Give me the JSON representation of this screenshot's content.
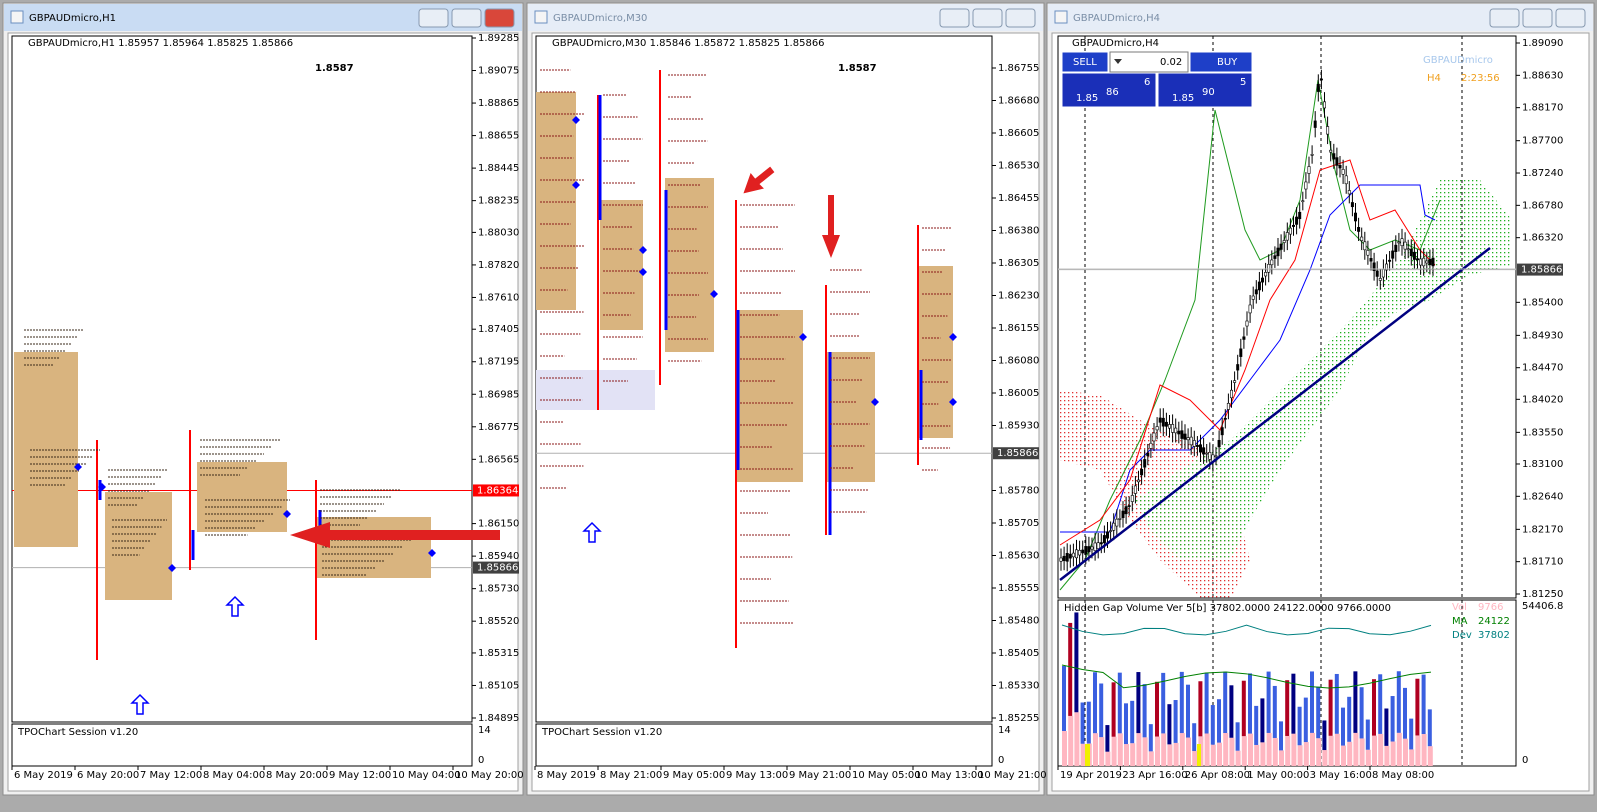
{
  "windows": [
    {
      "title": "GBPAUDmicro,H1",
      "header": "GBPAUDmicro,H1 1.85957 1.85964 1.85825 1.85866",
      "big_price": "1.8587",
      "price_axis": [
        "1.89285",
        "1.89075",
        "1.88865",
        "1.88655",
        "1.88445",
        "1.88235",
        "1.88030",
        "1.87820",
        "1.87610",
        "1.87405",
        "1.87195",
        "1.86985",
        "1.86775",
        "1.86565",
        "1.86150",
        "1.85940",
        "1.85730",
        "1.85520",
        "1.85315",
        "1.85105",
        "1.84895"
      ],
      "price_markers": [
        {
          "label": "1.86364",
          "color": "#ff0000"
        },
        {
          "label": "1.85866",
          "color": "#404040"
        }
      ],
      "indicator": {
        "name": "TPOChart Session v1.20",
        "scale_max": "14",
        "scale_min": "0"
      },
      "time_axis": [
        "6 May 2019",
        "6 May 20:00",
        "7 May 12:00",
        "8 May 04:00",
        "8 May 20:00",
        "9 May 12:00",
        "10 May 04:00",
        "10 May 20:00"
      ]
    },
    {
      "title": "GBPAUDmicro,M30",
      "header": "GBPAUDmicro,M30 1.85846 1.85872 1.85825 1.85866",
      "big_price": "1.8587",
      "price_axis": [
        "1.86755",
        "1.86680",
        "1.86605",
        "1.86530",
        "1.86455",
        "1.86380",
        "1.86305",
        "1.86230",
        "1.86155",
        "1.86080",
        "1.86005",
        "1.85930",
        "1.85780",
        "1.85705",
        "1.85630",
        "1.85555",
        "1.85480",
        "1.85405",
        "1.85330",
        "1.85255"
      ],
      "price_markers": [
        {
          "label": "1.85866",
          "color": "#404040"
        }
      ],
      "indicator": {
        "name": "TPOChart Session v1.20",
        "scale_max": "14",
        "scale_min": "0"
      },
      "time_axis": [
        "8 May 2019",
        "8 May 21:00",
        "9 May 05:00",
        "9 May 13:00",
        "9 May 21:00",
        "10 May 05:00",
        "10 May 13:00",
        "10 May 21:00"
      ]
    },
    {
      "title": "GBPAUDmicro,H4",
      "header": "GBPAUDmicro,H4",
      "price_axis": [
        "1.89090",
        "1.88630",
        "1.88170",
        "1.87700",
        "1.87240",
        "1.86780",
        "1.86320",
        "1.85400",
        "1.84930",
        "1.84470",
        "1.84020",
        "1.83550",
        "1.83100",
        "1.82640",
        "1.82170",
        "1.81710",
        "1.81250"
      ],
      "price_markers": [
        {
          "label": "1.85866",
          "color": "#404040"
        }
      ],
      "trade_panel": {
        "sell": "SELL",
        "lot": "0.02",
        "buy": "BUY",
        "bid_big": "1.85",
        "bid_pips": "86",
        "bid_frac": "6",
        "ask_big": "1.85",
        "ask_pips": "90",
        "ask_frac": "5"
      },
      "symbol": "GBPAUDmicro",
      "timeframe": "H4",
      "countdown": "2:23:56",
      "indicator": {
        "name": "Hidden Gap Volume Ver 5[b] 37802.0000 24122.0000 9766.0000",
        "scale_max": "54406.8",
        "scale_min": "0",
        "legend": [
          {
            "name": "Vol",
            "value": "9766",
            "color": "#ffb6c1"
          },
          {
            "name": "MA",
            "value": "24122",
            "color": "#008000"
          },
          {
            "name": "Dev",
            "value": "37802",
            "color": "#008080"
          }
        ]
      },
      "time_axis": [
        "19 Apr 2019",
        "23 Apr 16:00",
        "26 Apr 08:00",
        "1 May 00:00",
        "3 May 16:00",
        "8 May 08:00"
      ]
    }
  ]
}
